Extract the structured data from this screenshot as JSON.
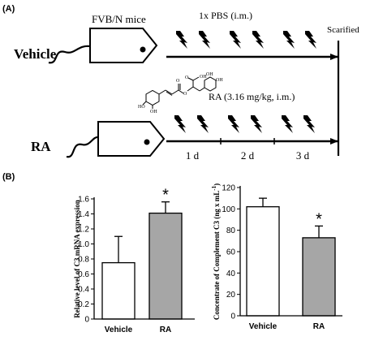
{
  "panel_a": {
    "label": "(A)",
    "mouse_strain": "FVB/N mice",
    "vehicle_group": "Vehicle",
    "ra_group": "RA",
    "vehicle_treatment": "1x PBS (i.m.)",
    "ra_treatment": "RA (3.16 mg/kg, i.m.)",
    "endpoint": "Scarified",
    "day_labels": [
      "1 d",
      "2 d",
      "3 d"
    ],
    "injections_per_arm": 6
  },
  "panel_b": {
    "label": "(B)"
  },
  "colors": {
    "vehicle_bar": "#ffffff",
    "ra_bar": "#a6a6a6",
    "stroke": "#000000"
  },
  "chart_data": [
    {
      "type": "bar",
      "categories": [
        "Vehicle",
        "RA"
      ],
      "values": [
        0.75,
        1.41
      ],
      "error": [
        0.35,
        0.15
      ],
      "significance": [
        "",
        "*"
      ],
      "ylabel": "Relative level of C3 mRNA expression",
      "xlabel": "",
      "ylim": [
        0,
        1.6
      ],
      "yticks": [
        0,
        0.2,
        0.4,
        0.6,
        0.8,
        1.0,
        1.2,
        1.4,
        1.6
      ],
      "ytick_labels": [
        "0",
        "0.2",
        "0.4",
        "0.6",
        "0.8",
        "1.0",
        "1.2",
        "1.4",
        "1.6"
      ]
    },
    {
      "type": "bar",
      "categories": [
        "Vehicle",
        "RA"
      ],
      "values": [
        102,
        73
      ],
      "error": [
        8,
        11
      ],
      "significance": [
        "",
        "*"
      ],
      "ylabel": "Concentrate of Complement C3 (ng x mL",
      "ylabel_superscript": "-1",
      "ylabel_close": ")",
      "xlabel": "",
      "ylim": [
        0,
        120
      ],
      "yticks": [
        0,
        20,
        40,
        60,
        80,
        100,
        120
      ],
      "ytick_labels": [
        "0",
        "20",
        "40",
        "60",
        "80",
        "100",
        "120"
      ]
    }
  ]
}
